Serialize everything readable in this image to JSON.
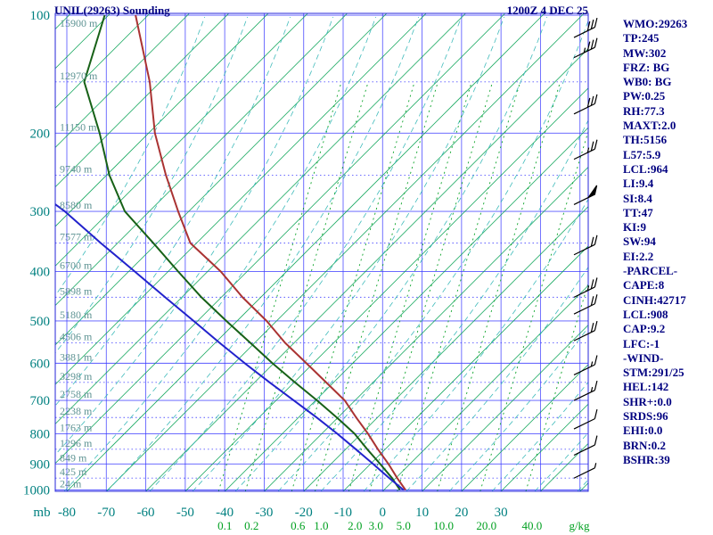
{
  "header": {
    "title": "UNIL(29263) Sounding",
    "datetime": "1200Z  4 DEC 25"
  },
  "stats_panel": {
    "lines": [
      "WMO:29263",
      "TP:245",
      "MW:302",
      "FRZ: BG",
      "WB0: BG",
      "PW:0.25",
      "RH:77.3",
      "MAXT:2.0",
      "TH:5156",
      "L57:5.9",
      "LCL:964",
      "LI:9.4",
      "SI:8.4",
      "TT:47",
      "KI:9",
      "SW:94",
      "EI:2.2",
      "-PARCEL-",
      "CAPE:8",
      "CINH:42717",
      "LCL:908",
      "CAP:9.2",
      "LFC:-1",
      "-WIND-",
      "STM:291/25",
      "HEL:142",
      "SHR+:0.0",
      "SRDS:96",
      "EHI:0.0",
      "BRN:0.2",
      "BSHR:39"
    ]
  },
  "chart_data": {
    "type": "line",
    "subtype": "thermodynamic sounding diagram (emagram / skew-T style)",
    "title": "UNIL(29263) Sounding",
    "datetime": "1200Z  4 DEC 25",
    "pressure_axis": {
      "unit_label": "mb",
      "major_ticks": [
        100,
        200,
        300,
        400,
        500,
        600,
        700,
        800,
        900,
        1000
      ],
      "levels": [
        {
          "p": 100,
          "height": "15900 m"
        },
        {
          "p": 150,
          "height": "12970 m"
        },
        {
          "p": 200,
          "height": "11150 m"
        },
        {
          "p": 250,
          "height": "9740 m"
        },
        {
          "p": 300,
          "height": "8580 m"
        },
        {
          "p": 350,
          "height": "7577 m"
        },
        {
          "p": 400,
          "height": "6700 m"
        },
        {
          "p": 450,
          "height": "5898 m"
        },
        {
          "p": 500,
          "height": "5180 m"
        },
        {
          "p": 550,
          "height": "4506 m"
        },
        {
          "p": 600,
          "height": "3881 m"
        },
        {
          "p": 650,
          "height": "3298 m"
        },
        {
          "p": 700,
          "height": "2758 m"
        },
        {
          "p": 750,
          "height": "2238 m"
        },
        {
          "p": 800,
          "height": "1763 m"
        },
        {
          "p": 850,
          "height": "1296 m"
        },
        {
          "p": 900,
          "height": "849 m"
        },
        {
          "p": 950,
          "height": "425 m"
        },
        {
          "p": 1000,
          "height": "24 m"
        }
      ]
    },
    "temp_axis": {
      "unit": "C",
      "ticks": [
        -80,
        -70,
        -60,
        -50,
        -40,
        -30,
        -20,
        -10,
        0,
        10,
        20,
        30
      ]
    },
    "mixing_ratio": {
      "unit": "g/kg",
      "values": [
        "0.1",
        "0.2",
        "0.6",
        "1.0",
        "2.0",
        "3.0",
        "5.0",
        "10.0",
        "20.0",
        "40.0"
      ]
    },
    "series": [
      {
        "name": "temperature",
        "color": "#aa3333",
        "points": [
          [
            100,
            -62.6
          ],
          [
            150,
            -59.0
          ],
          [
            200,
            -57.7
          ],
          [
            250,
            -54.9
          ],
          [
            300,
            -51.8
          ],
          [
            350,
            -48.7
          ],
          [
            400,
            -41.0
          ],
          [
            450,
            -35.5
          ],
          [
            500,
            -29.4
          ],
          [
            550,
            -24.7
          ],
          [
            600,
            -19.3
          ],
          [
            650,
            -14.3
          ],
          [
            700,
            -9.6
          ],
          [
            750,
            -6.7
          ],
          [
            800,
            -3.7
          ],
          [
            850,
            -1.2
          ],
          [
            900,
            1.5
          ],
          [
            950,
            3.7
          ],
          [
            1000,
            5.8
          ]
        ]
      },
      {
        "name": "dewpoint",
        "color": "#176117",
        "points": [
          [
            100,
            -70.4
          ],
          [
            150,
            -75.6
          ],
          [
            200,
            -71.7
          ],
          [
            250,
            -69.2
          ],
          [
            300,
            -65.3
          ],
          [
            350,
            -58.1
          ],
          [
            400,
            -51.8
          ],
          [
            450,
            -45.9
          ],
          [
            500,
            -39.6
          ],
          [
            550,
            -33.5
          ],
          [
            600,
            -27.9
          ],
          [
            650,
            -22.2
          ],
          [
            700,
            -16.6
          ],
          [
            750,
            -11.6
          ],
          [
            800,
            -7.1
          ],
          [
            850,
            -3.9
          ],
          [
            900,
            -0.6
          ],
          [
            950,
            2.4
          ],
          [
            1000,
            4.4
          ]
        ]
      },
      {
        "name": "parcel",
        "color": "#2222cc",
        "points": [
          [
            250,
            -92.9
          ],
          [
            300,
            -80.5
          ],
          [
            350,
            -71.4
          ],
          [
            400,
            -62.8
          ],
          [
            450,
            -55.1
          ],
          [
            500,
            -47.9
          ],
          [
            550,
            -41.3
          ],
          [
            600,
            -34.9
          ],
          [
            650,
            -28.6
          ],
          [
            700,
            -22.5
          ],
          [
            750,
            -16.7
          ],
          [
            800,
            -11.5
          ],
          [
            850,
            -6.8
          ],
          [
            900,
            -2.4
          ],
          [
            950,
            1.7
          ],
          [
            1000,
            5.3
          ]
        ]
      }
    ],
    "wind_barbs": {
      "color": "#000000",
      "levels_p_kt": [
        [
          115,
          30
        ],
        [
          130,
          35
        ],
        [
          180,
          30
        ],
        [
          230,
          25
        ],
        [
          290,
          50
        ],
        [
          370,
          20
        ],
        [
          450,
          25
        ],
        [
          485,
          20
        ],
        [
          545,
          20
        ],
        [
          630,
          15
        ],
        [
          700,
          15
        ],
        [
          785,
          10
        ],
        [
          870,
          10
        ],
        [
          950,
          5
        ]
      ]
    },
    "style_colors": {
      "grid_blue": "#3a3aff",
      "border_blue": "#2626d8",
      "dry_adiabat_green": "#00a050",
      "moist_adiabat_cyan": "#2cb4b4",
      "mixing_ratio_green": "#00a020",
      "axis_label_teal": "#008080",
      "height_label_teal": "#5f9494",
      "annotation_navy": "#000080"
    }
  }
}
